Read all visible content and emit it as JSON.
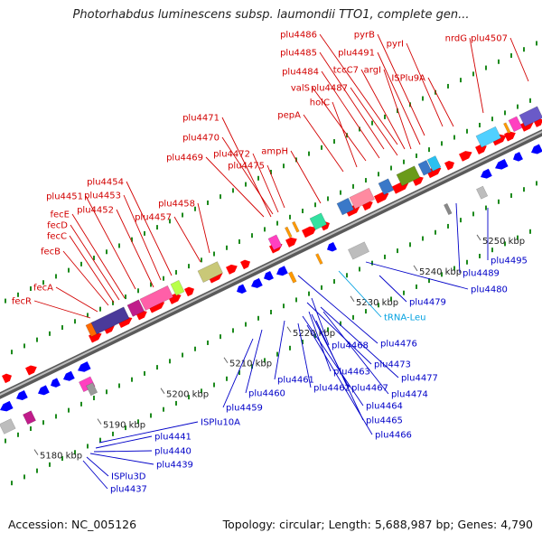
{
  "title": "Photorhabdus luminescens subsp. laumondii TTO1, complete gen...",
  "accession": "Accession: NC_005126",
  "summary": "Topology: circular; Length: 5,688,987 bp; Genes: 4,790",
  "colors": {
    "forward_label": "#d20000",
    "reverse_label": "#0000c8",
    "rna_label": "#00a0e0",
    "forward_arrow": "#ff0000",
    "reverse_arrow": "#0000ff",
    "backbone": "#8a8a8a",
    "tick_green": "#1d8a1d"
  },
  "scale_ticks": [
    {
      "kbp": 5180,
      "label": "5180 kbp"
    },
    {
      "kbp": 5190,
      "label": "5190 kbp"
    },
    {
      "kbp": 5200,
      "label": "5200 kbp"
    },
    {
      "kbp": 5210,
      "label": "5210 kbp"
    },
    {
      "kbp": 5220,
      "label": "5220 kbp"
    },
    {
      "kbp": 5230,
      "label": "5230 kbp"
    },
    {
      "kbp": 5240,
      "label": "5240 kbp"
    },
    {
      "kbp": 5250,
      "label": "5250 kbp"
    }
  ],
  "forward_labels": [
    "plu4486",
    "pyrB",
    "plu4485",
    "plu4491",
    "tccC7",
    "argI",
    "pyrI",
    "nrdG",
    "plu4507",
    "plu4484",
    "ISPlu9A",
    "valS",
    "plu4487",
    "holC",
    "pepA",
    "plu4471",
    "plu4470",
    "plu4472",
    "plu4469",
    "plu4475",
    "ampH",
    "plu4454",
    "plu4458",
    "plu4451",
    "plu4453",
    "plu4457",
    "fecE",
    "plu4452",
    "fecD",
    "fecC",
    "fecB",
    "fecA",
    "fecR"
  ],
  "reverse_labels": [
    "plu4495",
    "plu4489",
    "plu4480",
    "plu4479",
    "plu4476",
    "plu4468",
    "plu4473",
    "plu4477",
    "plu4463",
    "plu4474",
    "plu4467",
    "plu4461",
    "plu4462",
    "plu4460",
    "plu4464",
    "plu4465",
    "plu4459",
    "plu4466",
    "ISPlu10A",
    "plu4441",
    "plu4440",
    "plu4439",
    "ISPlu3D",
    "plu4437"
  ],
  "rna_labels": [
    "tRNA-Leu"
  ]
}
